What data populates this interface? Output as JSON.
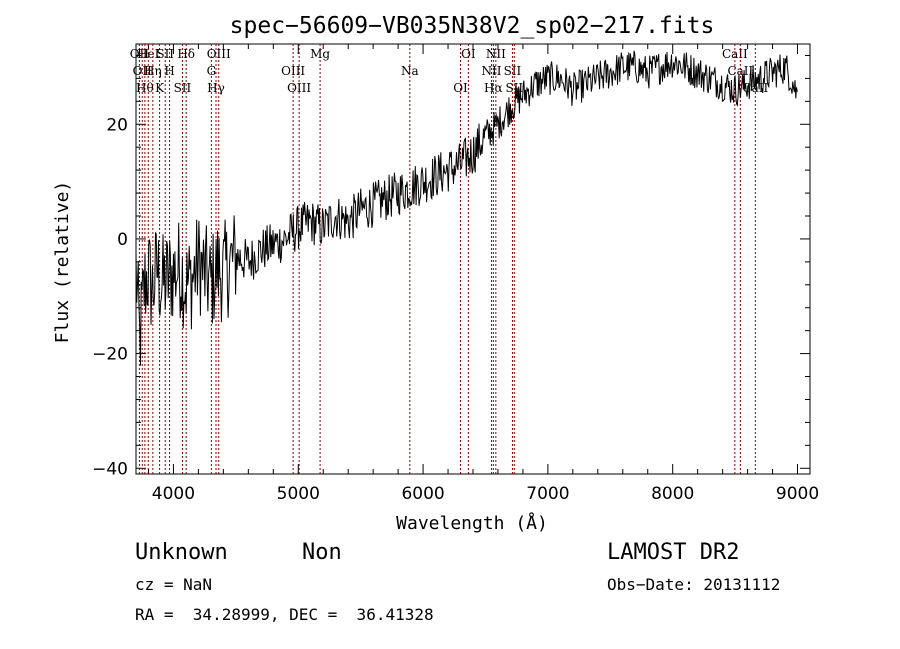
{
  "chart_data": {
    "type": "line",
    "title": "spec−56609−VB035N38V2_sp02−217.fits",
    "xlabel": "Wavelength (Å)",
    "ylabel": "Flux (relative)",
    "xlim": [
      3700,
      9100
    ],
    "ylim": [
      -41,
      34
    ],
    "xticks": [
      4000,
      5000,
      6000,
      7000,
      8000,
      9000
    ],
    "xtick_labels": [
      "4000",
      "5000",
      "6000",
      "7000",
      "8000",
      "9000"
    ],
    "yticks": [
      -40,
      -20,
      0,
      20
    ],
    "ytick_labels": [
      "−40",
      "−20",
      "0",
      "20"
    ],
    "grid": false,
    "legend": "none",
    "line_color": "#000000",
    "marker_line_color": "#8b0000",
    "series": [
      {
        "x": [
          3700,
          3730,
          3750,
          3770,
          3800,
          3830,
          3870,
          3900,
          3950,
          4000,
          4050,
          4100,
          4150,
          4200,
          4250,
          4300,
          4350,
          4400,
          4500,
          4600,
          4700,
          4800,
          4900,
          5000,
          5100,
          5200,
          5300,
          5400,
          5500,
          5600,
          5700,
          5800,
          5900,
          6000,
          6100,
          6200,
          6300,
          6400,
          6500,
          6600,
          6700,
          6800,
          6900,
          7000,
          7100,
          7200,
          7300,
          7400,
          7500,
          7600,
          7700,
          7800,
          7900,
          8000,
          8100,
          8200,
          8300,
          8400,
          8500,
          8600,
          8700,
          8800,
          8900,
          8950,
          9000
        ],
        "y": [
          -5,
          -18,
          -12,
          -8,
          -6,
          -9,
          -5,
          -8,
          -7,
          -6,
          -5,
          -8,
          -7,
          -4,
          -6,
          -8,
          -5,
          -6,
          -3,
          -4,
          -2,
          -1,
          0,
          2,
          3,
          2,
          4,
          3,
          5,
          6,
          7,
          8,
          9,
          10,
          11,
          12,
          13,
          15,
          18,
          20,
          23,
          25,
          27,
          28,
          28,
          26,
          27,
          28,
          29,
          30,
          30,
          29,
          30,
          31,
          30,
          29,
          28,
          27,
          26,
          27,
          28,
          29,
          30,
          28,
          25
        ]
      }
    ],
    "line_markers": [
      {
        "x": 3727,
        "label": "OII"
      },
      {
        "x": 3750,
        "label": "OII"
      },
      {
        "x": 3771,
        "label": "Hθ"
      },
      {
        "x": 3798,
        "label": "HeI"
      },
      {
        "x": 3835,
        "label": "Hη"
      },
      {
        "x": 3889,
        "label": "K"
      },
      {
        "x": 3934,
        "label": "SII"
      },
      {
        "x": 3969,
        "label": "H"
      },
      {
        "x": 4072,
        "label": "SII"
      },
      {
        "x": 4102,
        "label": "Hδ"
      },
      {
        "x": 4304,
        "label": "G"
      },
      {
        "x": 4341,
        "label": "Hγ"
      },
      {
        "x": 4363,
        "label": "OIII"
      },
      {
        "x": 4959,
        "label": "OIII"
      },
      {
        "x": 5007,
        "label": "OIII"
      },
      {
        "x": 5175,
        "label": "Mg"
      },
      {
        "x": 5894,
        "label": "Na"
      },
      {
        "x": 6300,
        "label": "OI"
      },
      {
        "x": 6363,
        "label": "OI"
      },
      {
        "x": 6548,
        "label": "NII"
      },
      {
        "x": 6563,
        "label": "Hα"
      },
      {
        "x": 6583,
        "label": "NII"
      },
      {
        "x": 6716,
        "label": "SII"
      },
      {
        "x": 6731,
        "label": "SII"
      },
      {
        "x": 8498,
        "label": "CaII"
      },
      {
        "x": 8542,
        "label": "CaII"
      },
      {
        "x": 8662,
        "label": "CaII"
      }
    ]
  },
  "footer": {
    "class_text": "Unknown",
    "subclass_text": "Non",
    "survey": "LAMOST DR2",
    "cz": "cz = NaN",
    "obs_date": "Obs−Date: 20131112",
    "radec": "RA =  34.28999, DEC =  36.41328"
  }
}
